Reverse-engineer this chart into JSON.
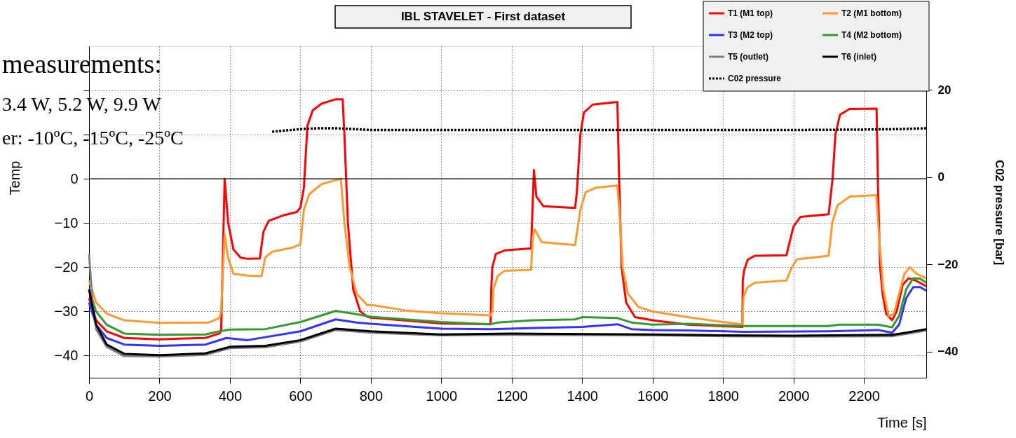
{
  "chart_data": {
    "type": "line",
    "title": "IBL STAVELET - First dataset",
    "xlabel": "Time [s]",
    "ylabel": "Temp",
    "y2label": "C02 pressure [bar]",
    "annotations": [
      "measurements:",
      "3.4 W, 5.2 W, 9.9 W",
      "er: -10ºC, -15ºC, -25ºC"
    ],
    "xlim": [
      0,
      2377
    ],
    "xticks": [
      0,
      200,
      400,
      600,
      800,
      1000,
      1200,
      1400,
      1600,
      1800,
      2000,
      2200
    ],
    "ylim": [
      -45,
      30
    ],
    "yticks": [
      -40,
      -30,
      -20,
      -10,
      0,
      {
        "value": 10,
        "label": null
      },
      {
        "value": 20,
        "label": null
      }
    ],
    "y2lim": [
      -46,
      30
    ],
    "y2ticks": [
      -40,
      -20,
      0,
      20
    ],
    "grid": true,
    "legend": "top right",
    "line_style": "solid",
    "marker": "none",
    "ref_lines": [
      {
        "axis": "y",
        "value": 0,
        "label": null,
        "color": "#000000"
      }
    ],
    "series": [
      {
        "name": "T1 (M1 top)",
        "color": "#ff0000",
        "x": [
          0,
          20,
          50,
          100,
          200,
          330,
          370,
          375,
          385,
          395,
          410,
          430,
          450,
          485,
          495,
          510,
          550,
          590,
          600,
          610,
          620,
          635,
          660,
          700,
          720,
          725,
          735,
          750,
          770,
          790,
          800,
          1000,
          1140,
          1142,
          1145,
          1155,
          1180,
          1246,
          1255,
          1263,
          1270,
          1290,
          1380,
          1385,
          1395,
          1405,
          1430,
          1500,
          1505,
          1512,
          1525,
          1550,
          1600,
          1700,
          1855,
          1856,
          1860,
          1870,
          1890,
          1980,
          1990,
          2000,
          2020,
          2100,
          2111,
          2119,
          2132,
          2159,
          2236,
          2240,
          2246,
          2253,
          2263,
          2280,
          2293,
          2310,
          2327,
          2347,
          2377
        ],
        "values": [
          -27,
          -32,
          -34.5,
          -36,
          -36.3,
          -36,
          -35,
          -34.5,
          0,
          -10,
          -16,
          -17.8,
          -18.1,
          -18,
          -12,
          -9.5,
          -8.3,
          -7.5,
          -6.5,
          -2,
          12,
          15.5,
          17,
          18,
          18,
          10,
          -10,
          -25,
          -30,
          -31.2,
          -31.4,
          -32.7,
          -32.9,
          -25,
          -20,
          -17,
          -16.2,
          -15.8,
          -15.8,
          2,
          -4,
          -6.2,
          -6.6,
          -3,
          10,
          15,
          16.8,
          17.4,
          0,
          -20,
          -28,
          -31.3,
          -32,
          -33,
          -33.5,
          -23,
          -20.7,
          -18.3,
          -17.4,
          -17.3,
          -14,
          -10.8,
          -8.6,
          -8,
          0,
          10,
          14.5,
          15.8,
          15.9,
          -2,
          -20,
          -26,
          -30.5,
          -32,
          -30,
          -24,
          -22.5,
          -23,
          -24.3
        ]
      },
      {
        "name": "T2 (M1 bottom)",
        "color": "#ff9933",
        "x": [
          0,
          20,
          50,
          100,
          200,
          340,
          370,
          375,
          385,
          395,
          410,
          450,
          490,
          500,
          520,
          580,
          600,
          610,
          625,
          660,
          700,
          715,
          725,
          740,
          760,
          790,
          800,
          900,
          1000,
          1140,
          1145,
          1148,
          1160,
          1180,
          1255,
          1260,
          1265,
          1285,
          1380,
          1395,
          1410,
          1440,
          1500,
          1508,
          1515,
          1530,
          1560,
          1600,
          1700,
          1800,
          1855,
          1858,
          1870,
          1890,
          1980,
          1995,
          2010,
          2100,
          2110,
          2125,
          2160,
          2235,
          2245,
          2255,
          2270,
          2285,
          2300,
          2315,
          2330,
          2350,
          2377
        ],
        "values": [
          -23,
          -28,
          -30.5,
          -32,
          -32.6,
          -32.5,
          -31.5,
          -30,
          -12.5,
          -18,
          -21.5,
          -21.9,
          -22,
          -17.8,
          -16.5,
          -15.5,
          -14.8,
          -7,
          -3.5,
          -1.2,
          -0.3,
          0,
          -10,
          -20,
          -26,
          -28.6,
          -28.5,
          -29.8,
          -30.4,
          -30.9,
          -30,
          -25,
          -22,
          -20.8,
          -20.6,
          -13,
          -11.4,
          -14.3,
          -15,
          -7,
          -3,
          -2,
          -1.5,
          -10,
          -20,
          -26,
          -29,
          -30,
          -31.3,
          -32.4,
          -32.9,
          -26.8,
          -24.5,
          -23.5,
          -23,
          -20,
          -18.2,
          -17.4,
          -10,
          -6,
          -4,
          -3.7,
          -15,
          -25,
          -31,
          -30.6,
          -26,
          -21.5,
          -20,
          -21.5,
          -22.5
        ]
      },
      {
        "name": "T3 (M2 top)",
        "color": "#3333ff",
        "x": [
          0,
          20,
          50,
          100,
          200,
          330,
          390,
          450,
          600,
          700,
          760,
          800,
          1000,
          1140,
          1400,
          1500,
          1540,
          1600,
          1700,
          1860,
          2100,
          2240,
          2280,
          2300,
          2320,
          2340,
          2360,
          2377
        ],
        "values": [
          -28,
          -33,
          -36,
          -37.5,
          -37.8,
          -37.5,
          -36,
          -36.5,
          -34.5,
          -31.8,
          -32.5,
          -32.8,
          -33.9,
          -34,
          -33.5,
          -32.9,
          -34,
          -34.2,
          -34.3,
          -34.6,
          -34.5,
          -34.2,
          -34.8,
          -33,
          -27,
          -24.5,
          -24.5,
          -25.3
        ]
      },
      {
        "name": "T4 (M2 bottom)",
        "color": "#339933",
        "x": [
          0,
          20,
          50,
          100,
          200,
          330,
          370,
          400,
          500,
          600,
          700,
          750,
          800,
          1000,
          1140,
          1160,
          1260,
          1380,
          1400,
          1500,
          1540,
          1600,
          1700,
          1860,
          2100,
          2130,
          2240,
          2280,
          2300,
          2320,
          2340,
          2360,
          2377
        ],
        "values": [
          -25,
          -30,
          -33,
          -35,
          -35.3,
          -35.2,
          -34.5,
          -34.1,
          -34,
          -32.4,
          -29.9,
          -30.5,
          -31.2,
          -32.4,
          -32.9,
          -32.5,
          -32,
          -31.8,
          -31.3,
          -31.5,
          -32.5,
          -33,
          -32.8,
          -33.3,
          -33.3,
          -33,
          -33,
          -33.6,
          -31,
          -25,
          -22.5,
          -22.6,
          -23.5
        ]
      },
      {
        "name": "T5 (outlet)",
        "color": "#808080",
        "x": [
          0,
          10,
          20,
          50,
          100,
          200,
          330,
          400,
          500,
          600,
          700,
          800,
          1000,
          1200,
          1600,
          1800,
          2000,
          2280,
          2320,
          2377
        ],
        "values": [
          -17,
          -28,
          -34,
          -38,
          -40.1,
          -40.2,
          -39.8,
          -38.3,
          -38.1,
          -36.8,
          -34.2,
          -34.8,
          -35.4,
          -35.3,
          -35.4,
          -35.6,
          -35.7,
          -35.6,
          -35.1,
          -34.3
        ]
      },
      {
        "name": "T6 (inlet)",
        "color": "#000000",
        "x": [
          0,
          20,
          50,
          100,
          200,
          330,
          400,
          500,
          600,
          700,
          800,
          1000,
          1200,
          1600,
          1800,
          2000,
          2280,
          2320,
          2377
        ],
        "values": [
          -25,
          -33,
          -37.5,
          -39.6,
          -39.9,
          -39.5,
          -38,
          -37.8,
          -36.5,
          -33.9,
          -34.5,
          -35.2,
          -35,
          -35.2,
          -35.4,
          -35.5,
          -35.3,
          -34.8,
          -34
        ]
      },
      {
        "name": "C02 pressure",
        "color": "#000000",
        "axis": "y2",
        "line_style": "dotted",
        "x": [
          520,
          560,
          600,
          650,
          700,
          750,
          800,
          900,
          1000,
          1200,
          1400,
          1600,
          1800,
          2000,
          2200,
          2300,
          2377
        ],
        "values": [
          10.4,
          10.7,
          11.0,
          11.2,
          11.2,
          11.0,
          10.8,
          10.8,
          10.8,
          10.8,
          10.8,
          10.8,
          10.8,
          10.8,
          10.9,
          11.0,
          11.2
        ]
      }
    ]
  }
}
